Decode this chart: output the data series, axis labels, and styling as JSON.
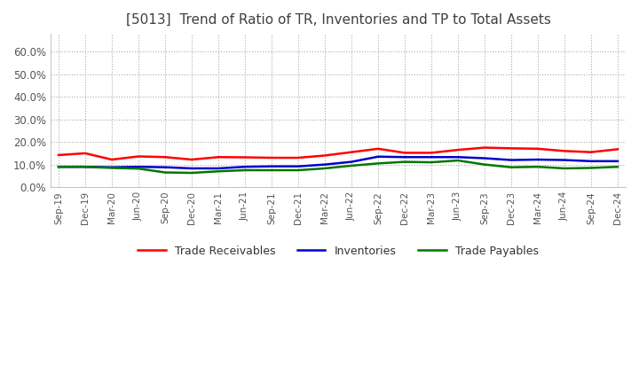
{
  "title": "[5013]  Trend of Ratio of TR, Inventories and TP to Total Assets",
  "title_color": "#404040",
  "background_color": "#ffffff",
  "plot_bg_color": "#ffffff",
  "grid_color": "#aaaaaa",
  "ylim": [
    0.0,
    0.68
  ],
  "yticks": [
    0.0,
    0.1,
    0.2,
    0.3,
    0.4,
    0.5,
    0.6
  ],
  "x_labels": [
    "Sep-19",
    "Dec-19",
    "Mar-20",
    "Jun-20",
    "Sep-20",
    "Dec-20",
    "Mar-21",
    "Jun-21",
    "Sep-21",
    "Dec-21",
    "Mar-22",
    "Jun-22",
    "Sep-22",
    "Dec-22",
    "Mar-23",
    "Jun-23",
    "Sep-23",
    "Dec-23",
    "Mar-24",
    "Jun-24",
    "Sep-24",
    "Dec-24"
  ],
  "trade_receivables": [
    0.142,
    0.15,
    0.122,
    0.136,
    0.133,
    0.122,
    0.133,
    0.132,
    0.13,
    0.13,
    0.14,
    0.155,
    0.17,
    0.152,
    0.152,
    0.165,
    0.175,
    0.172,
    0.17,
    0.16,
    0.155,
    0.168
  ],
  "inventories": [
    0.09,
    0.09,
    0.088,
    0.09,
    0.088,
    0.083,
    0.083,
    0.09,
    0.092,
    0.092,
    0.1,
    0.112,
    0.135,
    0.133,
    0.133,
    0.133,
    0.128,
    0.12,
    0.122,
    0.12,
    0.115,
    0.115
  ],
  "trade_payables": [
    0.09,
    0.09,
    0.085,
    0.082,
    0.065,
    0.063,
    0.07,
    0.075,
    0.075,
    0.075,
    0.083,
    0.095,
    0.105,
    0.112,
    0.11,
    0.118,
    0.1,
    0.088,
    0.09,
    0.083,
    0.085,
    0.09
  ],
  "tr_color": "#ff0000",
  "inv_color": "#0000cc",
  "tp_color": "#007700",
  "legend_labels": [
    "Trade Receivables",
    "Inventories",
    "Trade Payables"
  ],
  "figsize": [
    7.2,
    4.4
  ],
  "dpi": 100
}
